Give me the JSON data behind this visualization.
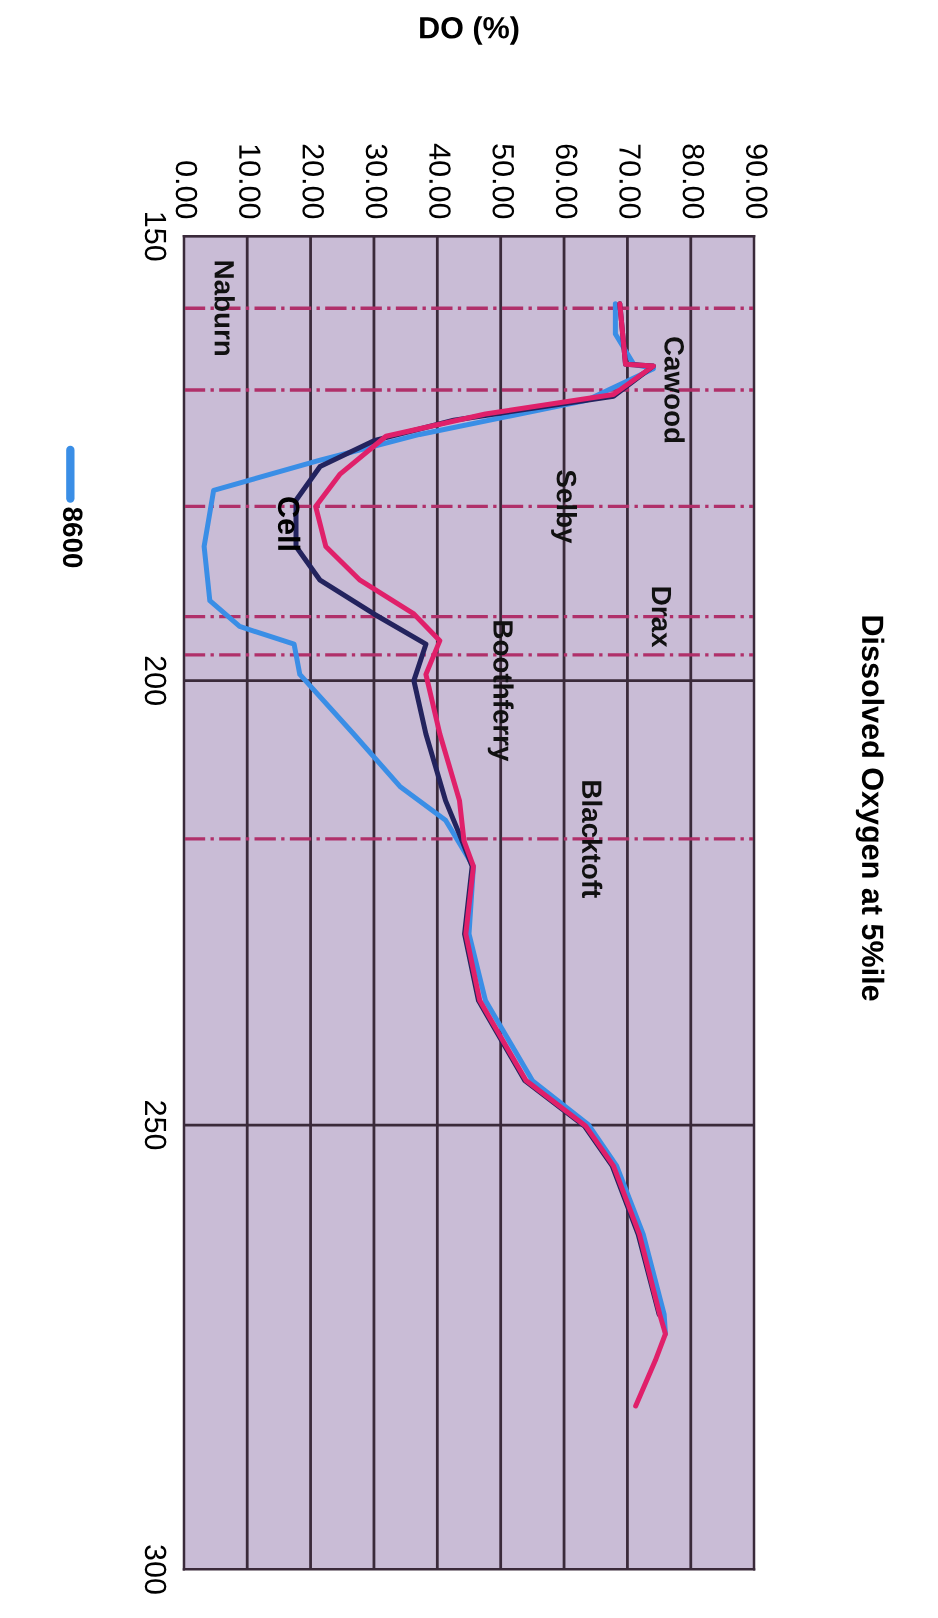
{
  "chart_data": {
    "type": "line",
    "title": "Dissolved Oxygen at 5%ile",
    "xlabel": "DO (%)",
    "ylabel": "Cell",
    "ylim": [
      300,
      150
    ],
    "yticks": [
      150,
      200,
      250,
      300
    ],
    "xlim": [
      0,
      90
    ],
    "xticks": [
      {
        "value": 0,
        "label": "0.00"
      },
      {
        "value": 10,
        "label": "10.00"
      },
      {
        "value": 20,
        "label": "20.00"
      },
      {
        "value": 30,
        "label": "30.00"
      },
      {
        "value": 40,
        "label": "40.00"
      },
      {
        "value": 50,
        "label": "50.00"
      },
      {
        "value": 60,
        "label": "60.00"
      },
      {
        "value": 70,
        "label": "70.00"
      },
      {
        "value": 80,
        "label": "80.00"
      },
      {
        "value": 90,
        "label": "90.00"
      }
    ],
    "grid": true,
    "legend": "left",
    "marker": "none",
    "line_style": "solid",
    "series": [
      {
        "name": "8600",
        "color": "#3a8ee6",
        "values": [
          157.6,
          161,
          164.4,
          164.9,
          168.5,
          172.3,
          175.2,
          178.6,
          184.9,
          191,
          193.9,
          195.9,
          199.3,
          206,
          211.9,
          215.7,
          220.9,
          228.5,
          236,
          245,
          250,
          254.6,
          262.3,
          271.3,
          273.5
        ],
        "x": [
          68.1,
          68.1,
          71,
          74.1,
          63.4,
          37.2,
          21.5,
          4.7,
          3.2,
          4.1,
          8.8,
          17.4,
          18.3,
          26.8,
          34.1,
          41.3,
          45.7,
          45,
          47.6,
          55,
          63.9,
          68.3,
          72.5,
          75.8,
          76
        ]
      },
      {
        "color": "#23235e",
        "values": [
          157.6,
          164.4,
          164.6,
          168,
          170.7,
          173,
          175.9,
          179.7,
          184.9,
          188.7,
          192.5,
          195.9,
          200,
          206,
          213.5,
          217.3,
          220.9,
          228.5,
          236,
          245,
          250.1,
          254.6,
          262.3,
          271.3
        ],
        "x": [
          68.8,
          69.7,
          74.1,
          67.8,
          42.6,
          30,
          21.5,
          17.7,
          17.7,
          21.5,
          30,
          38.2,
          36.3,
          38.2,
          41.3,
          43.5,
          45.5,
          44.3,
          46.5,
          53.8,
          63.2,
          67.6,
          71.7,
          75
        ]
      },
      {
        "color": "#e0206a",
        "values": [
          157.6,
          164.4,
          164.6,
          167.8,
          170,
          172.5,
          176.8,
          180.4,
          184.9,
          188.7,
          192.5,
          195.5,
          199.3,
          206,
          213.5,
          218,
          220.9,
          228.5,
          236,
          245,
          250.1,
          254.6,
          262.3,
          271.3,
          273.5,
          276.5,
          281.6
        ],
        "x": [
          68.8,
          69.7,
          74.1,
          67.8,
          47.6,
          31.9,
          24.6,
          20.8,
          22.4,
          27.8,
          36.3,
          40.4,
          38.2,
          40.4,
          43.5,
          44.2,
          45.7,
          44.5,
          46.7,
          54,
          63.4,
          67.8,
          71.9,
          75.1,
          76,
          74.4,
          71.3
        ]
      }
    ],
    "ref_lines": [
      {
        "axis": "y",
        "value": 158.1,
        "label": "Naburn",
        "color": "#b0306a",
        "line_style": "dashdot"
      },
      {
        "axis": "y",
        "value": 167.3,
        "label": "Cawood",
        "color": "#b0306a",
        "line_style": "dashdot"
      },
      {
        "axis": "y",
        "value": 180.4,
        "label": "Selby",
        "color": "#b0306a",
        "line_style": "dashdot"
      },
      {
        "axis": "y",
        "value": 192.8,
        "label": "Drax",
        "color": "#b0306a",
        "line_style": "dashdot"
      },
      {
        "axis": "y",
        "value": 197.1,
        "label": "Boothferry",
        "color": "#b0306a",
        "line_style": "dashdot"
      },
      {
        "axis": "y",
        "value": 217.8,
        "label": "Blacktoft",
        "color": "#b0306a",
        "line_style": "dashdot"
      }
    ]
  }
}
